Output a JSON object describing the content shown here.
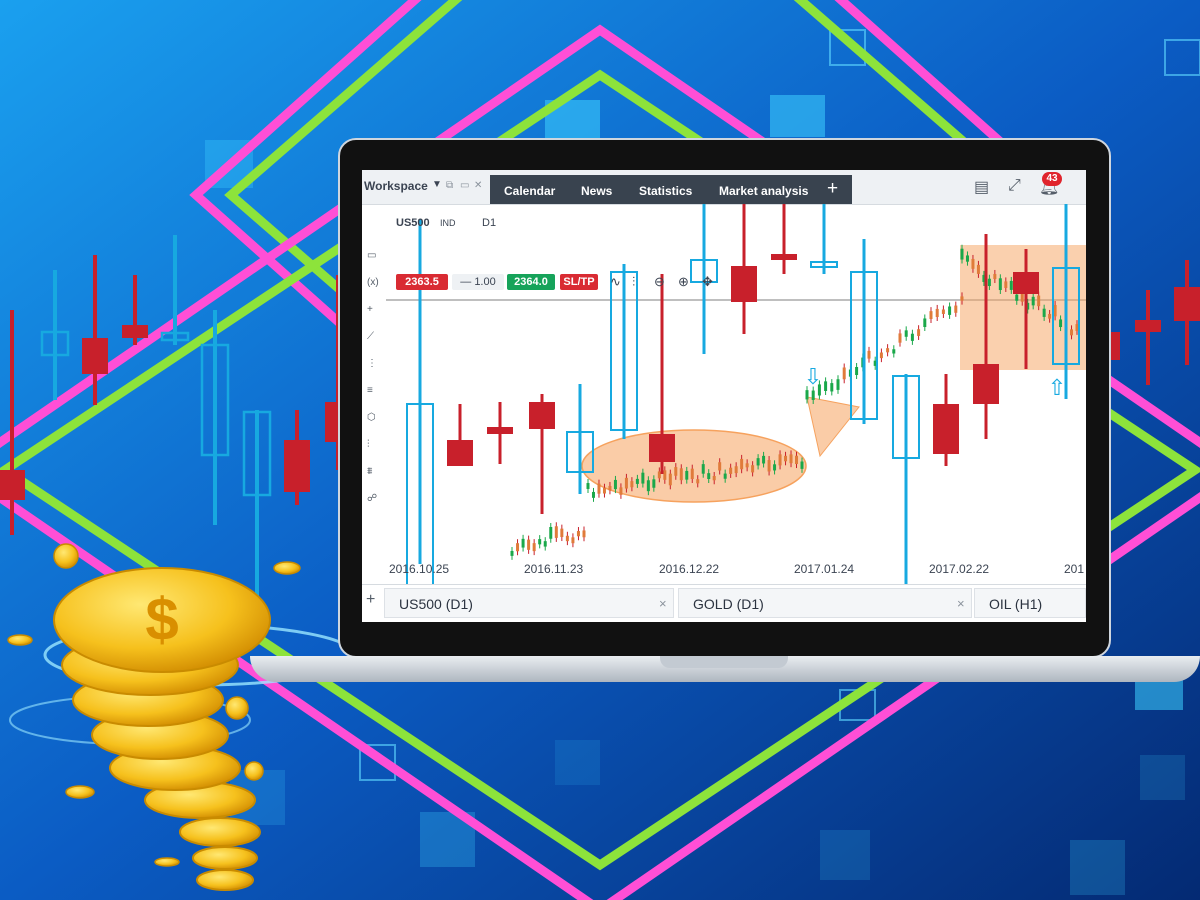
{
  "colors": {
    "bull": "#17a9e0",
    "bear": "#c8202b",
    "highlight": "#f6a25e",
    "neon_pink": "#ff4fd6",
    "neon_green": "#8de33b"
  },
  "platform": {
    "workspace_label": "Workspace",
    "tabs": [
      "Calendar",
      "News",
      "Statistics",
      "Market analysis"
    ],
    "add_tab_label": "+",
    "notifications_count": "43",
    "instrument": "US500",
    "instrument_type": "IND",
    "timeframe": "D1",
    "sell_price": "2363.5",
    "volume": "1.00",
    "buy_price": "2364.0",
    "sltp_label": "SL/TP",
    "volume_prefix": "—"
  },
  "chart_data": {
    "type": "candlestick",
    "x_tick_labels": [
      "2016.10.25",
      "2016.11.23",
      "2016.12.22",
      "2017.01.24",
      "2017.02.22",
      "201"
    ],
    "grid": false
  },
  "bottom_tabs": [
    {
      "label": "US500 (D1)",
      "close": "×"
    },
    {
      "label": "GOLD (D1)",
      "close": "×"
    },
    {
      "label": "OIL (H1)"
    }
  ],
  "bottom_add": "+",
  "icons": [
    "coin-tornado-icon",
    "dollar-coin-icon",
    "down-arrow-icon",
    "up-arrow-icon",
    "bell-icon",
    "fullscreen-icon",
    "layout-icon",
    "crosshair-icon",
    "zoom-in-icon",
    "zoom-out-icon",
    "line-chart-icon",
    "candles-icon"
  ]
}
